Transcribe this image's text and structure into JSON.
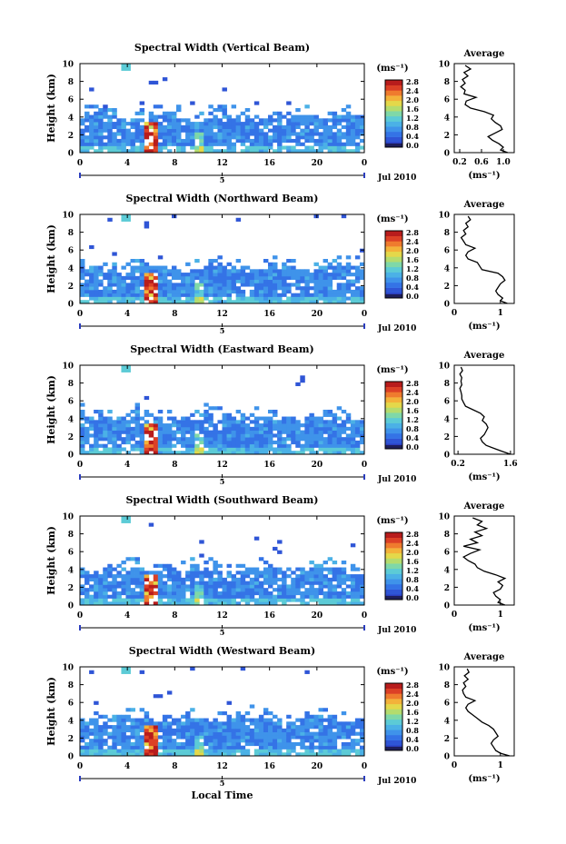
{
  "colors": {
    "scale": [
      "#1e1e5a",
      "#2b3dbe",
      "#2f55d6",
      "#3473e6",
      "#3f93ea",
      "#4bb1e6",
      "#5ccbd6",
      "#7fd8a8",
      "#b4dc6e",
      "#e4d84a",
      "#f3b23a",
      "#ef7b2e",
      "#dc4026",
      "#b81c1c"
    ],
    "axis": "#000000",
    "profile": "#000000"
  },
  "figure": {
    "xlabel": "Local Time",
    "date_label": "Jul 2010",
    "day_label": "5",
    "unit_label": "(ms⁻¹)",
    "profile_title": "Average"
  },
  "chart_data": [
    {
      "type": "heatmap",
      "title": "Spectral Width (Vertical Beam)",
      "ylabel": "Height (km)",
      "xlim": [
        0,
        24
      ],
      "ylim": [
        0,
        10
      ],
      "x_ticks": [
        "0",
        "4",
        "8",
        "12",
        "16",
        "20",
        "0"
      ],
      "y_ticks": [
        "0",
        "2",
        "4",
        "6",
        "8",
        "10"
      ],
      "colorbar_ticks": [
        "0.0",
        "0.4",
        "0.8",
        "1.2",
        "1.6",
        "2.0",
        "2.4",
        "2.8"
      ],
      "colorbar_range": [
        0,
        2.8
      ],
      "cloud_top_km": 4.1,
      "profile": {
        "title": "Average",
        "xlabel": "(ms⁻¹)",
        "x_ticks": [
          "0.2",
          "0.6",
          "1.0"
        ],
        "xlim": [
          0.1,
          1.2
        ],
        "heights": [
          0,
          0.3,
          0.6,
          1.0,
          1.4,
          1.8,
          2.2,
          2.6,
          3.0,
          3.4,
          3.8,
          4.2,
          4.6,
          5.0,
          5.4,
          5.8,
          6.2,
          6.6,
          7.0,
          7.4,
          7.8,
          8.2,
          8.6,
          9.0,
          9.4,
          9.8
        ],
        "values": [
          1.08,
          0.95,
          1.0,
          0.92,
          0.8,
          0.72,
          0.85,
          0.98,
          0.95,
          0.85,
          0.78,
          0.82,
          0.65,
          0.4,
          0.3,
          0.32,
          0.5,
          0.28,
          0.3,
          0.22,
          0.3,
          0.25,
          0.35,
          0.28,
          0.4,
          0.3
        ]
      }
    },
    {
      "type": "heatmap",
      "title": "Spectral Width (Northward Beam)",
      "ylabel": "Height (km)",
      "xlim": [
        0,
        24
      ],
      "ylim": [
        0,
        10
      ],
      "x_ticks": [
        "0",
        "4",
        "8",
        "12",
        "16",
        "20",
        "0"
      ],
      "y_ticks": [
        "0",
        "2",
        "4",
        "6",
        "8",
        "10"
      ],
      "colorbar_ticks": [
        "0.0",
        "0.4",
        "0.8",
        "1.2",
        "1.6",
        "2.0",
        "2.4",
        "2.8"
      ],
      "colorbar_range": [
        0,
        2.8
      ],
      "cloud_top_km": 4.0,
      "profile": {
        "title": "Average",
        "xlabel": "(ms⁻¹)",
        "x_ticks": [
          "0",
          "1"
        ],
        "xlim": [
          0,
          1.3
        ],
        "heights": [
          0,
          0.3,
          0.6,
          1.0,
          1.4,
          1.8,
          2.2,
          2.6,
          3.0,
          3.4,
          3.8,
          4.2,
          4.6,
          5.0,
          5.4,
          5.8,
          6.2,
          6.6,
          7.0,
          7.4,
          7.8,
          8.2,
          8.6,
          9.0,
          9.4,
          9.8
        ],
        "values": [
          1.15,
          1.0,
          1.05,
          0.95,
          0.9,
          0.95,
          1.0,
          1.1,
          1.05,
          0.95,
          0.6,
          0.55,
          0.5,
          0.3,
          0.25,
          0.3,
          0.45,
          0.25,
          0.2,
          0.15,
          0.25,
          0.2,
          0.3,
          0.25,
          0.35,
          0.3
        ]
      }
    },
    {
      "type": "heatmap",
      "title": "Spectral Width (Eastward Beam)",
      "ylabel": "Height (km)",
      "xlim": [
        0,
        24
      ],
      "ylim": [
        0,
        10
      ],
      "x_ticks": [
        "0",
        "4",
        "8",
        "12",
        "16",
        "20",
        "0"
      ],
      "y_ticks": [
        "0",
        "2",
        "4",
        "6",
        "8",
        "10"
      ],
      "colorbar_ticks": [
        "0.0",
        "0.4",
        "0.8",
        "1.2",
        "1.6",
        "2.0",
        "2.4",
        "2.8"
      ],
      "colorbar_range": [
        0,
        2.8
      ],
      "cloud_top_km": 4.2,
      "profile": {
        "title": "Average",
        "xlabel": "(ms⁻¹)",
        "x_ticks": [
          "0.2",
          "1.6"
        ],
        "xlim": [
          0.1,
          1.7
        ],
        "heights": [
          0,
          0.3,
          0.6,
          1.0,
          1.4,
          1.8,
          2.2,
          2.6,
          3.0,
          3.4,
          3.8,
          4.2,
          4.6,
          5.0,
          5.4,
          5.8,
          6.2,
          6.6,
          7.0,
          7.4,
          7.8,
          8.2,
          8.6,
          9.0,
          9.4,
          9.8
        ],
        "values": [
          1.6,
          1.4,
          1.2,
          0.95,
          0.85,
          0.8,
          0.9,
          0.95,
          1.0,
          0.95,
          0.85,
          0.9,
          0.8,
          0.6,
          0.4,
          0.35,
          0.3,
          0.3,
          0.28,
          0.25,
          0.3,
          0.28,
          0.3,
          0.25,
          0.32,
          0.28
        ]
      }
    },
    {
      "type": "heatmap",
      "title": "Spectral Width (Southward Beam)",
      "ylabel": "Height (km)",
      "xlim": [
        0,
        24
      ],
      "ylim": [
        0,
        10
      ],
      "x_ticks": [
        "0",
        "4",
        "8",
        "12",
        "16",
        "20",
        "0"
      ],
      "y_ticks": [
        "0",
        "2",
        "4",
        "6",
        "8",
        "10"
      ],
      "colorbar_ticks": [
        "0.0",
        "0.4",
        "0.8",
        "1.2",
        "1.6",
        "2.0",
        "2.4",
        "2.8"
      ],
      "colorbar_range": [
        0,
        2.8
      ],
      "cloud_top_km": 4.0,
      "profile": {
        "title": "Average",
        "xlabel": "(ms⁻¹)",
        "x_ticks": [
          "0",
          "1"
        ],
        "xlim": [
          0,
          1.3
        ],
        "heights": [
          0,
          0.3,
          0.6,
          1.0,
          1.4,
          1.8,
          2.2,
          2.6,
          3.0,
          3.4,
          3.8,
          4.2,
          4.6,
          5.0,
          5.4,
          5.8,
          6.2,
          6.6,
          7.0,
          7.4,
          7.8,
          8.2,
          8.6,
          9.0,
          9.4,
          9.8
        ],
        "values": [
          1.1,
          0.95,
          1.0,
          0.9,
          0.85,
          1.0,
          1.05,
          0.95,
          1.1,
          0.9,
          0.65,
          0.5,
          0.45,
          0.3,
          0.2,
          0.35,
          0.55,
          0.2,
          0.5,
          0.35,
          0.6,
          0.45,
          0.7,
          0.5,
          0.6,
          0.4
        ]
      }
    },
    {
      "type": "heatmap",
      "title": "Spectral Width (Westward Beam)",
      "ylabel": "Height (km)",
      "xlim": [
        0,
        24
      ],
      "ylim": [
        0,
        10
      ],
      "x_ticks": [
        "0",
        "4",
        "8",
        "12",
        "16",
        "20",
        "0"
      ],
      "y_ticks": [
        "0",
        "2",
        "4",
        "6",
        "8",
        "10"
      ],
      "colorbar_ticks": [
        "0.0",
        "0.4",
        "0.8",
        "1.2",
        "1.6",
        "2.0",
        "2.4",
        "2.8"
      ],
      "colorbar_range": [
        0,
        2.8
      ],
      "cloud_top_km": 4.2,
      "profile": {
        "title": "Average",
        "xlabel": "(ms⁻¹)",
        "x_ticks": [
          "0",
          "1"
        ],
        "xlim": [
          0,
          1.3
        ],
        "heights": [
          0,
          0.3,
          0.6,
          1.0,
          1.4,
          1.8,
          2.2,
          2.6,
          3.0,
          3.4,
          3.8,
          4.2,
          4.6,
          5.0,
          5.4,
          5.8,
          6.2,
          6.6,
          7.0,
          7.4,
          7.8,
          8.2,
          8.6,
          9.0,
          9.4,
          9.8
        ],
        "values": [
          1.2,
          1.0,
          0.9,
          0.85,
          0.8,
          0.85,
          0.95,
          0.9,
          0.85,
          0.75,
          0.6,
          0.5,
          0.4,
          0.3,
          0.25,
          0.3,
          0.45,
          0.25,
          0.2,
          0.18,
          0.25,
          0.2,
          0.3,
          0.22,
          0.32,
          0.28
        ]
      }
    }
  ]
}
